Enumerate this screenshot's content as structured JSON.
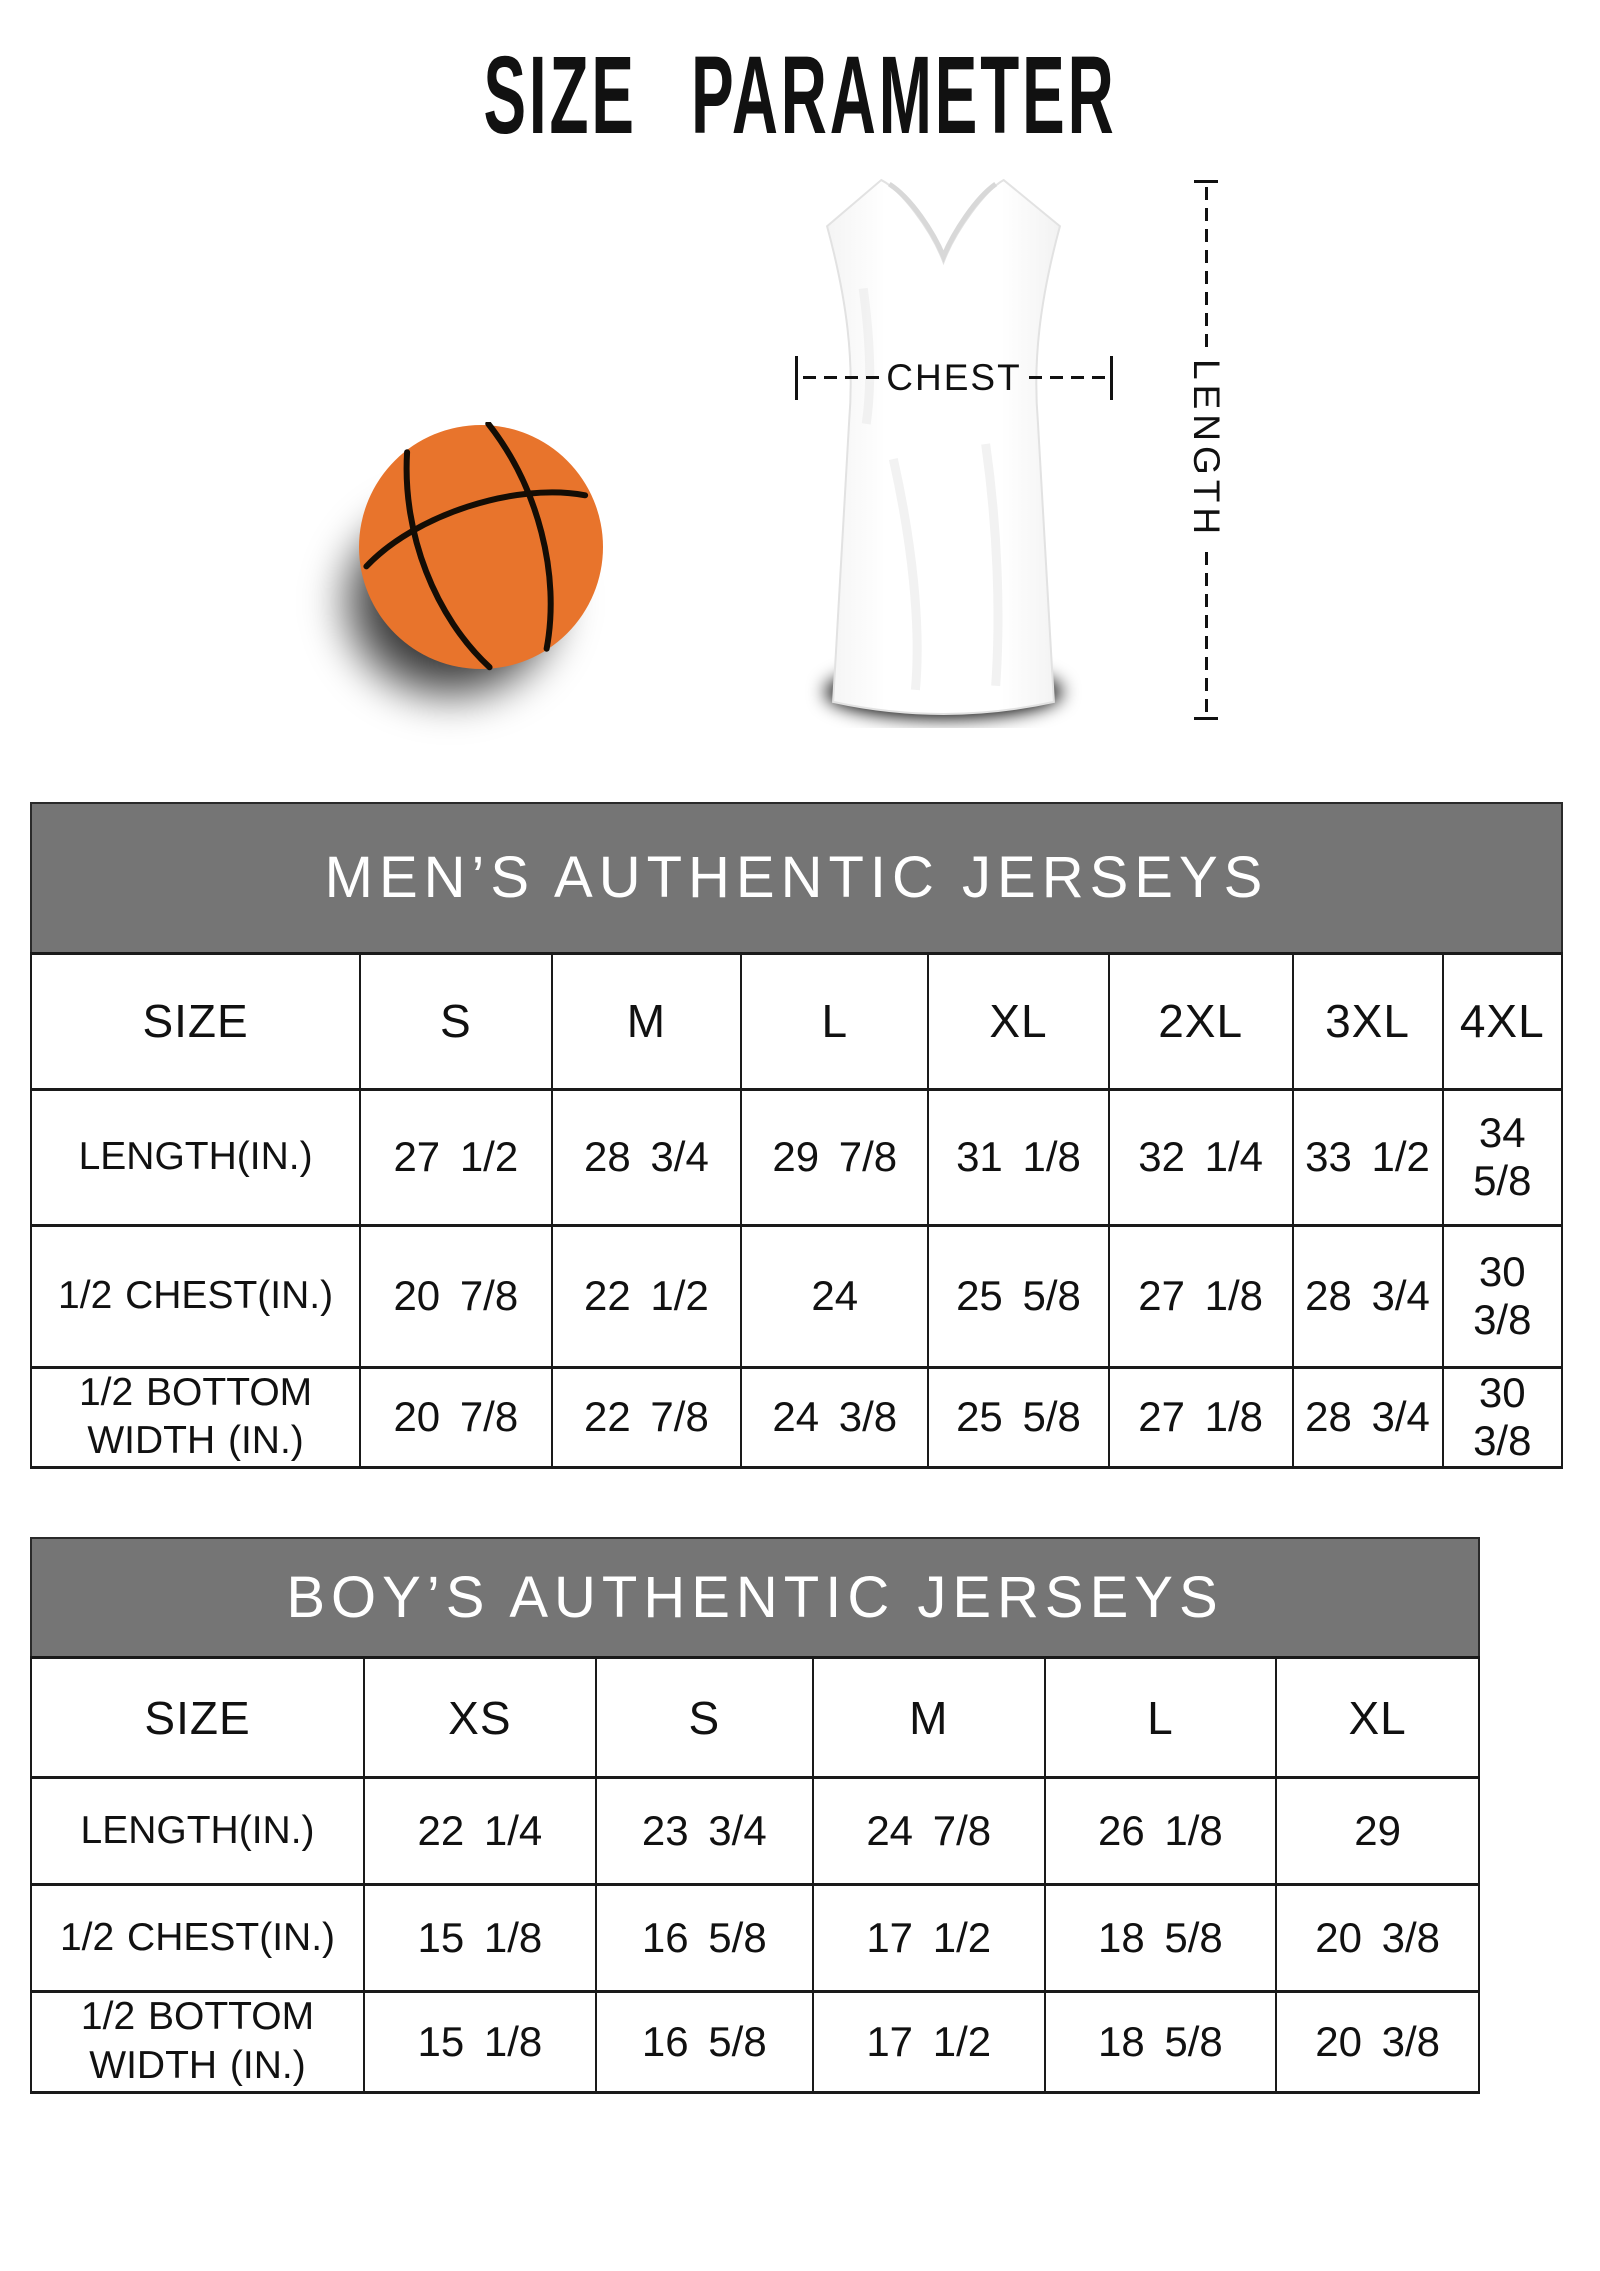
{
  "page_title": "SIZE PARAMETER",
  "diagram": {
    "chest_label": "CHEST",
    "length_label": "LENGTH",
    "basketball_icon": "basketball",
    "jersey_icon": "sleeveless-jersey"
  },
  "colors": {
    "band_gray": "#757575",
    "band_text": "#ffffff",
    "table_border": "#1a1a1a",
    "basketball_orange": "#e8742c",
    "seam_black": "#140d05"
  },
  "tables": [
    {
      "title": "MEN’S AUTHENTIC JERSEYS",
      "columns": [
        "SIZE",
        "S",
        "M",
        "L",
        "XL",
        "2XL",
        "3XL",
        "4XL"
      ],
      "rows": [
        {
          "label": "LENGTH(IN.)",
          "values": [
            "27 1/2",
            "28 3/4",
            "29 7/8",
            "31 1/8",
            "32 1/4",
            "33 1/2",
            "34 5/8"
          ]
        },
        {
          "label": "1/2 CHEST(IN.)",
          "values": [
            "20 7/8",
            "22 1/2",
            "24",
            "25 5/8",
            "27 1/8",
            "28 3/4",
            "30 3/8"
          ]
        },
        {
          "label": "1/2 BOTTOM WIDTH (IN.)",
          "values": [
            "20 7/8",
            "22 7/8",
            "24 3/8",
            "25 5/8",
            "27 1/8",
            "28 3/4",
            "30 3/8"
          ]
        }
      ]
    },
    {
      "title": "BOY’S AUTHENTIC JERSEYS",
      "columns": [
        "SIZE",
        "XS",
        "S",
        "M",
        "L",
        "XL"
      ],
      "rows": [
        {
          "label": "LENGTH(IN.)",
          "values": [
            "22 1/4",
            "23 3/4",
            "24 7/8",
            "26 1/8",
            "29"
          ]
        },
        {
          "label": "1/2 CHEST(IN.)",
          "values": [
            "15 1/8",
            "16 5/8",
            "17 1/2",
            "18 5/8",
            "20 3/8"
          ]
        },
        {
          "label": "1/2 BOTTOM WIDTH (IN.)",
          "values": [
            "15 1/8",
            "16 5/8",
            "17 1/2",
            "18 5/8",
            "20 3/8"
          ]
        }
      ]
    }
  ]
}
